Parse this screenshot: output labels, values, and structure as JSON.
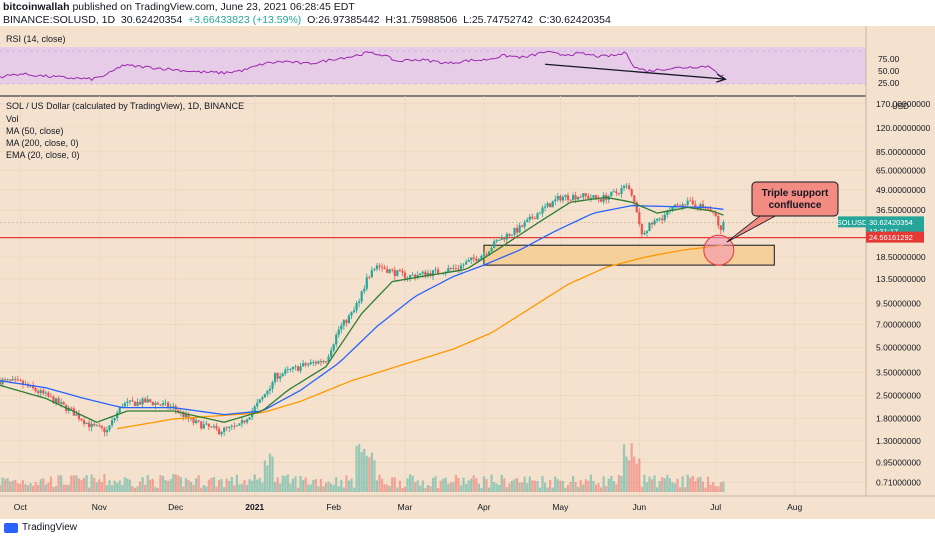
{
  "header": {
    "user": "bitcoinwallah",
    "published": "published on TradingView.com, June 23, 2021 06:28:45 EDT",
    "symbol": "BINANCE:SOLUSD, 1D",
    "last": "30.62420354",
    "change": "+3.66433823 (+13.59%)",
    "open": "O:26.97385442",
    "high": "H:31.75988506",
    "low": "L:25.74752742",
    "close": "C:30.62420354"
  },
  "rsi_pane": {
    "label": "RSI (14, close)",
    "ticks": [
      "75.00",
      "50.00",
      "25.00"
    ]
  },
  "legend": {
    "title": "SOL / US Dollar (calculated by TradingView), 1D, BINANCE",
    "vol": "Vol",
    "ma50": "MA (50, close)",
    "ma200": "MA (200, close, 0)",
    "ema20": "EMA (20, close, 0)"
  },
  "annotation": {
    "line1": "Triple support",
    "line2": "confluence"
  },
  "price_axis": {
    "currency": "USD",
    "labels": [
      "170.00000000",
      "120.00000000",
      "85.00000000",
      "65.00000000",
      "49.00000000",
      "36.50000000",
      "18.50000000",
      "13.50000000",
      "9.50000000",
      "7.00000000",
      "5.00000000",
      "3.50000000",
      "2.50000000",
      "1.80000000",
      "1.30000000",
      "0.95000000",
      "0.71000000"
    ]
  },
  "tags": {
    "symbol": "SOLUSD",
    "price": "30.62420354",
    "countdown": "13:31:17",
    "support": "24.56161292"
  },
  "colors": {
    "background": "#f4e2ce",
    "rsi_band": "#e6cce6",
    "rsi_line": "#9c27b0",
    "ma50": "#2962ff",
    "ma200": "#ff9800",
    "ema20": "#2e7d32",
    "up": "#26a69a",
    "down": "#ef5350",
    "support": "#e53935"
  },
  "footer": {
    "brand": "TradingView"
  },
  "chart_data": {
    "type": "candlestick",
    "title": "SOL / US Dollar (calculated by TradingView), 1D, BINANCE",
    "yscale": "log",
    "ylim": [
      0.62,
      185
    ],
    "x_ticks": [
      "Oct",
      "Nov",
      "Dec",
      "2021",
      "Feb",
      "Mar",
      "Apr",
      "May",
      "Jun",
      "Jul",
      "Aug"
    ],
    "month_start_day": [
      0,
      31,
      61,
      92,
      123,
      151,
      182,
      212,
      243,
      273,
      304
    ],
    "x_range_days": [
      -8,
      332
    ],
    "price_anchors": [
      [
        -8,
        3.1
      ],
      [
        0,
        3.0
      ],
      [
        10,
        2.5
      ],
      [
        20,
        2.0
      ],
      [
        28,
        1.6
      ],
      [
        34,
        1.5
      ],
      [
        40,
        2.2
      ],
      [
        50,
        2.3
      ],
      [
        60,
        2.1
      ],
      [
        68,
        1.7
      ],
      [
        78,
        1.5
      ],
      [
        86,
        1.6
      ],
      [
        95,
        2.4
      ],
      [
        100,
        3.3
      ],
      [
        106,
        3.6
      ],
      [
        112,
        3.9
      ],
      [
        120,
        4.2
      ],
      [
        125,
        6.5
      ],
      [
        131,
        8.5
      ],
      [
        136,
        13.5
      ],
      [
        140,
        16.5
      ],
      [
        146,
        15.0
      ],
      [
        152,
        14.0
      ],
      [
        158,
        14.5
      ],
      [
        164,
        15.0
      ],
      [
        172,
        16.0
      ],
      [
        182,
        19.5
      ],
      [
        188,
        24.0
      ],
      [
        196,
        28.0
      ],
      [
        204,
        36.0
      ],
      [
        212,
        44.0
      ],
      [
        220,
        45.0
      ],
      [
        228,
        43.0
      ],
      [
        234,
        47.0
      ],
      [
        238,
        52.0
      ],
      [
        241,
        40.0
      ],
      [
        244,
        26.0
      ],
      [
        248,
        30.0
      ],
      [
        254,
        35.0
      ],
      [
        260,
        41.0
      ],
      [
        266,
        39.0
      ],
      [
        270,
        37.0
      ],
      [
        273,
        33.0
      ],
      [
        275,
        26.5
      ],
      [
        276,
        30.6
      ]
    ],
    "ma50_anchors": [
      [
        -8,
        3.1
      ],
      [
        10,
        2.8
      ],
      [
        25,
        2.4
      ],
      [
        40,
        2.1
      ],
      [
        60,
        2.1
      ],
      [
        80,
        1.9
      ],
      [
        95,
        2.0
      ],
      [
        110,
        2.7
      ],
      [
        125,
        4.0
      ],
      [
        140,
        6.8
      ],
      [
        155,
        10.5
      ],
      [
        170,
        14.0
      ],
      [
        182,
        16.5
      ],
      [
        196,
        20.5
      ],
      [
        210,
        27.0
      ],
      [
        225,
        35.0
      ],
      [
        240,
        39.0
      ],
      [
        255,
        38.5
      ],
      [
        270,
        38.0
      ],
      [
        276,
        37.0
      ]
    ],
    "ema20_anchors": [
      [
        -8,
        2.9
      ],
      [
        10,
        2.4
      ],
      [
        30,
        1.7
      ],
      [
        42,
        2.0
      ],
      [
        60,
        2.0
      ],
      [
        80,
        1.7
      ],
      [
        95,
        2.0
      ],
      [
        105,
        2.7
      ],
      [
        120,
        3.8
      ],
      [
        134,
        8.2
      ],
      [
        146,
        13.0
      ],
      [
        160,
        14.2
      ],
      [
        175,
        15.5
      ],
      [
        188,
        21.0
      ],
      [
        204,
        31.0
      ],
      [
        216,
        41.0
      ],
      [
        230,
        44.0
      ],
      [
        240,
        41.0
      ],
      [
        250,
        35.0
      ],
      [
        262,
        38.0
      ],
      [
        272,
        36.0
      ],
      [
        276,
        34.0
      ]
    ],
    "ma200_anchors": [
      [
        38,
        1.55
      ],
      [
        60,
        1.78
      ],
      [
        80,
        1.88
      ],
      [
        95,
        1.95
      ],
      [
        110,
        2.3
      ],
      [
        130,
        3.1
      ],
      [
        150,
        3.9
      ],
      [
        170,
        4.9
      ],
      [
        185,
        6.2
      ],
      [
        200,
        8.8
      ],
      [
        215,
        12.5
      ],
      [
        230,
        16.0
      ],
      [
        245,
        18.5
      ],
      [
        260,
        20.5
      ],
      [
        276,
        22.0
      ]
    ],
    "rsi_anchors": [
      [
        -8,
        38
      ],
      [
        0,
        44
      ],
      [
        8,
        40
      ],
      [
        18,
        36
      ],
      [
        28,
        33
      ],
      [
        34,
        42
      ],
      [
        40,
        62
      ],
      [
        50,
        58
      ],
      [
        60,
        53
      ],
      [
        70,
        48
      ],
      [
        80,
        46
      ],
      [
        88,
        52
      ],
      [
        96,
        66
      ],
      [
        104,
        70
      ],
      [
        112,
        65
      ],
      [
        118,
        69
      ],
      [
        124,
        76
      ],
      [
        130,
        80
      ],
      [
        136,
        88
      ],
      [
        142,
        84
      ],
      [
        148,
        70
      ],
      [
        154,
        74
      ],
      [
        160,
        72
      ],
      [
        168,
        66
      ],
      [
        176,
        72
      ],
      [
        182,
        73
      ],
      [
        190,
        82
      ],
      [
        198,
        78
      ],
      [
        206,
        90
      ],
      [
        212,
        84
      ],
      [
        220,
        86
      ],
      [
        228,
        80
      ],
      [
        234,
        83
      ],
      [
        238,
        88
      ],
      [
        241,
        58
      ],
      [
        246,
        50
      ],
      [
        254,
        55
      ],
      [
        262,
        58
      ],
      [
        270,
        60
      ],
      [
        273,
        52
      ],
      [
        275,
        36
      ],
      [
        276,
        42
      ]
    ],
    "rsi_divergence": [
      [
        206,
        64
      ],
      [
        276,
        33
      ]
    ],
    "support_price": 24.56,
    "support_zone": [
      16.5,
      22.0
    ],
    "support_zone_days": [
      182,
      296
    ],
    "annotation_point": [
      275,
      20.5
    ]
  }
}
